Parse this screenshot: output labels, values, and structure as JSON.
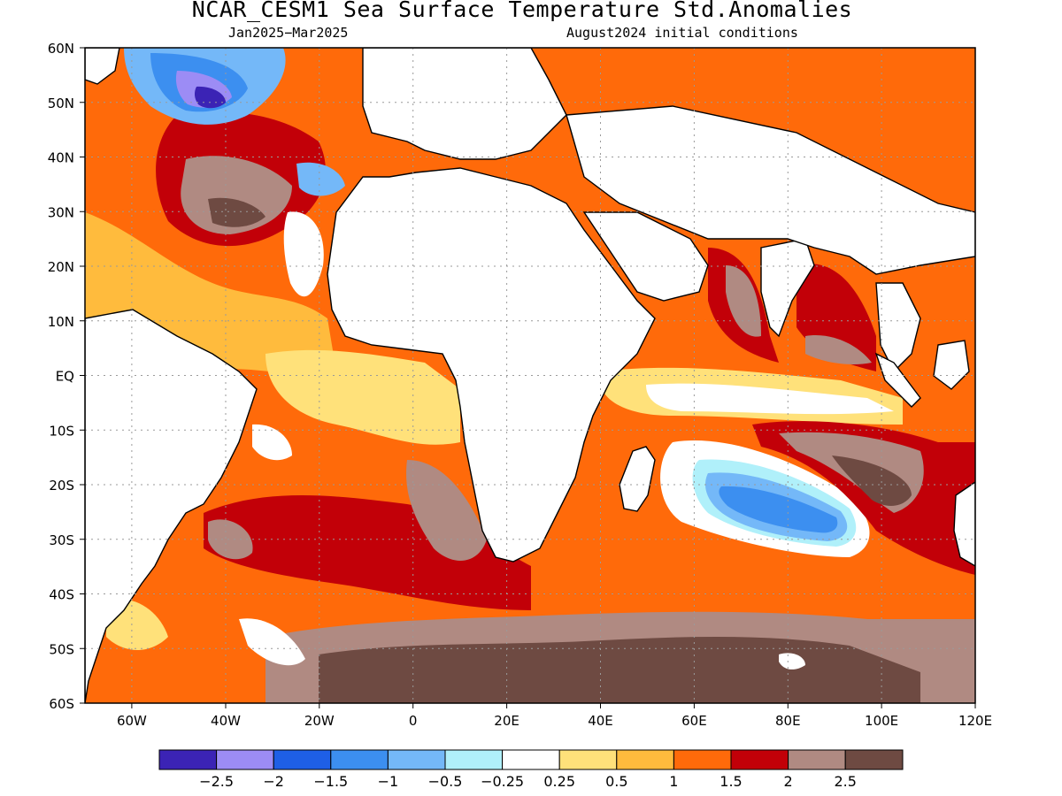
{
  "title": "NCAR_CESM1 Sea Surface Temperature Std.Anomalies",
  "subtitle_left": "Jan2025−Mar2025",
  "subtitle_right": "August2024 initial conditions",
  "map": {
    "projection": "equirectangular",
    "lon_range": [
      -70,
      120
    ],
    "lat_range": [
      -60,
      60
    ],
    "grid": "dotted",
    "lat_ticks": [
      "60N",
      "50N",
      "40N",
      "30N",
      "20N",
      "10N",
      "EQ",
      "10S",
      "20S",
      "30S",
      "40S",
      "50S",
      "60S"
    ],
    "lon_ticks": [
      "60W",
      "40W",
      "20W",
      "0",
      "20E",
      "40E",
      "60E",
      "80E",
      "100E",
      "120E"
    ]
  },
  "colorbar": {
    "colors": [
      "#3b23b5",
      "#9c8cf5",
      "#1e5fe6",
      "#3c8ff0",
      "#74b8f8",
      "#b0f0fa",
      "#ffffff",
      "#ffe17a",
      "#ffbb3d",
      "#ff6a0a",
      "#c20008",
      "#b08a82",
      "#6e4a42"
    ],
    "labels": [
      "−2.5",
      "−2",
      "−1.5",
      "−1",
      "−0.5",
      "−0.25",
      "0.25",
      "0.5",
      "1",
      "1.5",
      "2",
      "2.5"
    ]
  }
}
